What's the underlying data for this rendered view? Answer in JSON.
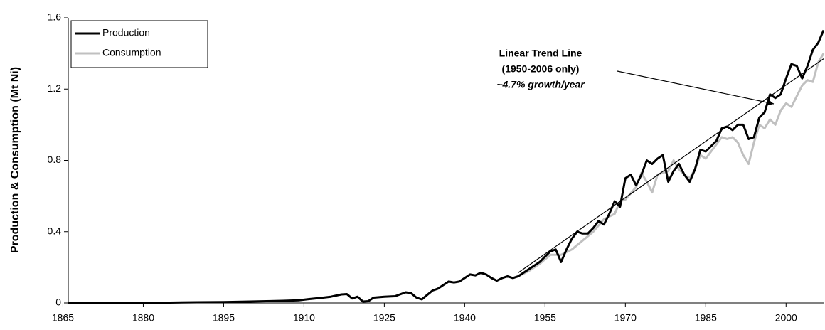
{
  "chart_data": {
    "type": "line",
    "y_label": "Production & Consumption (Mt Ni)",
    "xlim": [
      1866,
      2007
    ],
    "xticks": [
      1865,
      1880,
      1895,
      1910,
      1925,
      1940,
      1955,
      1970,
      1985,
      2000
    ],
    "ylim": [
      0,
      1.6
    ],
    "yticks": [
      0,
      0.4,
      0.8,
      1.2,
      1.6
    ],
    "legend": "upper left",
    "series": [
      {
        "name": "Production",
        "color": "#000000",
        "x": [
          1866,
          1870,
          1875,
          1880,
          1885,
          1890,
          1895,
          1900,
          1903,
          1906,
          1909,
          1911,
          1913,
          1915,
          1917,
          1918,
          1919,
          1920,
          1921,
          1922,
          1923,
          1925,
          1927,
          1929,
          1930,
          1931,
          1932,
          1933,
          1934,
          1935,
          1936,
          1937,
          1938,
          1939,
          1940,
          1941,
          1942,
          1943,
          1944,
          1945,
          1946,
          1947,
          1948,
          1949,
          1950,
          1951,
          1952,
          1953,
          1954,
          1955,
          1956,
          1957,
          1958,
          1959,
          1960,
          1961,
          1962,
          1963,
          1964,
          1965,
          1966,
          1967,
          1968,
          1969,
          1970,
          1971,
          1972,
          1973,
          1974,
          1975,
          1976,
          1977,
          1978,
          1979,
          1980,
          1981,
          1982,
          1983,
          1984,
          1985,
          1986,
          1987,
          1988,
          1989,
          1990,
          1991,
          1992,
          1993,
          1994,
          1995,
          1996,
          1997,
          1998,
          1999,
          2000,
          2001,
          2002,
          2003,
          2004,
          2005,
          2006,
          2007
        ],
        "values": [
          0.001,
          0.001,
          0.001,
          0.002,
          0.002,
          0.004,
          0.005,
          0.008,
          0.01,
          0.012,
          0.015,
          0.022,
          0.028,
          0.035,
          0.048,
          0.05,
          0.025,
          0.035,
          0.008,
          0.01,
          0.03,
          0.035,
          0.038,
          0.06,
          0.055,
          0.03,
          0.02,
          0.045,
          0.07,
          0.08,
          0.1,
          0.12,
          0.115,
          0.12,
          0.14,
          0.16,
          0.155,
          0.17,
          0.16,
          0.14,
          0.125,
          0.14,
          0.15,
          0.14,
          0.15,
          0.17,
          0.19,
          0.21,
          0.23,
          0.26,
          0.29,
          0.3,
          0.23,
          0.3,
          0.36,
          0.4,
          0.39,
          0.39,
          0.42,
          0.46,
          0.44,
          0.5,
          0.57,
          0.54,
          0.7,
          0.72,
          0.66,
          0.72,
          0.8,
          0.78,
          0.81,
          0.83,
          0.68,
          0.74,
          0.78,
          0.72,
          0.68,
          0.75,
          0.86,
          0.85,
          0.88,
          0.91,
          0.98,
          0.99,
          0.97,
          1.0,
          1.0,
          0.92,
          0.93,
          1.04,
          1.07,
          1.17,
          1.15,
          1.17,
          1.26,
          1.34,
          1.33,
          1.26,
          1.33,
          1.42,
          1.46,
          1.53
        ]
      },
      {
        "name": "Consumption",
        "color": "#c0c0c0",
        "x": [
          1950,
          1952,
          1954,
          1956,
          1958,
          1960,
          1962,
          1964,
          1966,
          1968,
          1969,
          1970,
          1972,
          1973,
          1974,
          1975,
          1976,
          1977,
          1978,
          1979,
          1980,
          1981,
          1982,
          1983,
          1984,
          1985,
          1986,
          1987,
          1988,
          1989,
          1990,
          1991,
          1992,
          1993,
          1994,
          1995,
          1996,
          1997,
          1998,
          1999,
          2000,
          2001,
          2002,
          2003,
          2004,
          2005,
          2006,
          2007
        ],
        "values": [
          0.15,
          0.18,
          0.22,
          0.27,
          0.27,
          0.3,
          0.35,
          0.4,
          0.47,
          0.5,
          0.57,
          0.58,
          0.65,
          0.73,
          0.68,
          0.62,
          0.72,
          0.73,
          0.74,
          0.8,
          0.75,
          0.72,
          0.7,
          0.75,
          0.83,
          0.81,
          0.85,
          0.89,
          0.93,
          0.92,
          0.93,
          0.9,
          0.83,
          0.78,
          0.9,
          1.0,
          0.98,
          1.03,
          1.0,
          1.08,
          1.12,
          1.1,
          1.16,
          1.22,
          1.25,
          1.24,
          1.35,
          1.4
        ]
      }
    ],
    "trend_line": {
      "x": [
        1950,
        2007
      ],
      "values": [
        0.17,
        1.37
      ],
      "color": "#000000"
    },
    "annotation": [
      "Linear Trend Line",
      "(1950-2006 only)",
      "~4.7% growth/year"
    ]
  }
}
